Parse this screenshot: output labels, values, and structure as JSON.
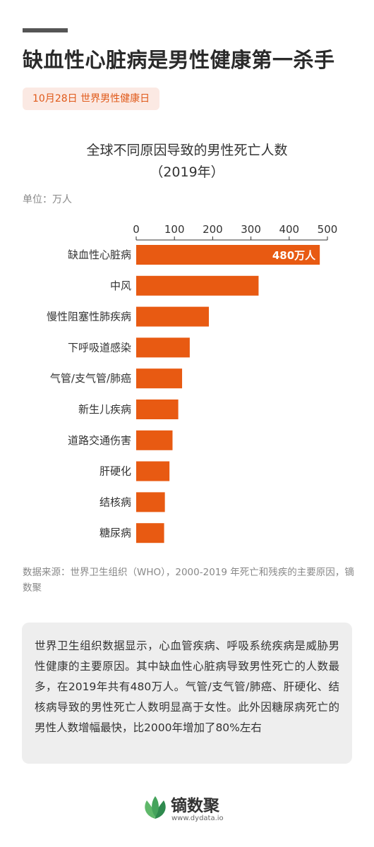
{
  "header": {
    "title": "缺血性心脏病是男性健康第一杀手",
    "date_badge": "10月28日 世界男性健康日"
  },
  "chart_data": {
    "type": "bar",
    "orientation": "horizontal",
    "title_line1": "全球不同原因导致的男性死亡人数",
    "title_line2": "（2019年）",
    "unit": "单位：万人",
    "categories": [
      "缺血性心脏病",
      "中风",
      "慢性阻塞性肺疾病",
      "下呼吸道感染",
      "气管/支气管/肺癌",
      "新生儿疾病",
      "道路交通伤害",
      "肝硬化",
      "结核病",
      "糖尿病"
    ],
    "values": [
      480,
      320,
      190,
      140,
      120,
      110,
      95,
      87,
      75,
      73
    ],
    "data_labels": [
      "480万人",
      "",
      "",
      "",
      "",
      "",
      "",
      "",
      "",
      ""
    ],
    "xlim": [
      0,
      500
    ],
    "xticks": [
      0,
      100,
      200,
      300,
      400,
      500
    ],
    "grid": false,
    "bar_color": "#e85a12"
  },
  "source": "数据来源：世界卫生组织（WHO），2000-2019 年死亡和残疾的主要原因，镝数聚",
  "summary": "世界卫生组织数据显示，心血管疾病、呼吸系统疾病是威胁男性健康的主要原因。其中缺血性心脏病导致男性死亡的人数最多，在2019年共有480万人。气管/支气管/肺癌、肝硬化、结核病导致的男性死亡人数明显高于女性。此外因糖尿病死亡的男性人数增幅最快，比2000年增加了80%左右",
  "brand": {
    "name": "镝数聚",
    "url": "www.dydata.io",
    "icon": "leaf-logo-icon",
    "colors": {
      "leaf_dark": "#2f8a4e",
      "leaf_light": "#5fb86a"
    }
  }
}
